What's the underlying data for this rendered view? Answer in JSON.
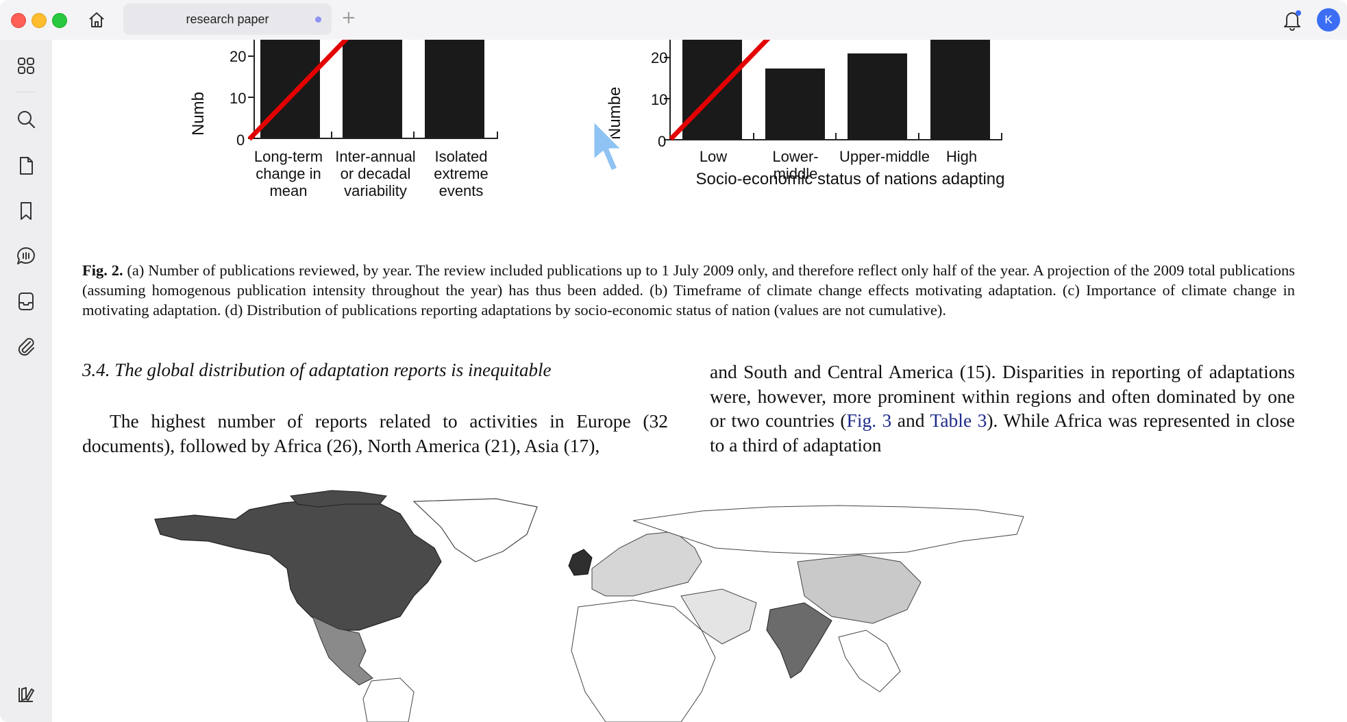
{
  "tab": {
    "title": "research paper"
  },
  "user": {
    "initial": "K"
  },
  "colors": {
    "accent": "#3b6ef5",
    "chart_bar": "#1a1a1a",
    "projection_line": "#e30000",
    "link": "#1d2a8a"
  },
  "sidebar": {
    "icons": [
      "grid-icon",
      "search-icon",
      "document-icon",
      "bookmark-icon",
      "chat-icon",
      "inbox-icon",
      "attachment-icon",
      "library-icon"
    ]
  },
  "chart_data": [
    {
      "type": "bar",
      "ylabel": "Numb",
      "yticks": [
        "0",
        "10",
        "20"
      ],
      "categories": [
        "Long-term change in mean",
        "Inter-annual or decadal variability",
        "Isolated extreme events"
      ],
      "category_lines": [
        [
          "Long-term",
          "change in",
          "mean"
        ],
        [
          "Inter-annual",
          "or decadal",
          "variability"
        ],
        [
          "Isolated",
          "extreme events"
        ]
      ],
      "values": [
        27,
        27,
        27
      ],
      "ylim": [
        0,
        27
      ]
    },
    {
      "type": "bar",
      "ylabel": "Numbe",
      "yticks": [
        "0",
        "10",
        "20"
      ],
      "categories": [
        "Low",
        "Lower-middle",
        "Upper-middle",
        "High"
      ],
      "values": [
        25,
        17.5,
        21,
        27
      ],
      "ylim": [
        0,
        27
      ],
      "xlabel": "Socio-economic status of nations adapting"
    }
  ],
  "caption": {
    "label": "Fig. 2.",
    "text": " (a) Number of publications reviewed, by year. The review included publications up to 1 July 2009 only, and therefore reflect only half of the year. A projection of the 2009 total publications (assuming homogenous publication intensity throughout the year) has thus been added. (b) Timeframe of climate change effects motivating adaptation. (c) Importance of climate change in motivating adaptation. (d) Distribution of publications reporting adaptations by socio-economic status of nation (values are not cumulative)."
  },
  "section": {
    "heading": "3.4.  The global distribution of adaptation reports is inequitable"
  },
  "body_left": "The highest number of reports related to activities in Europe (32 documents), followed by Africa (26), North America (21), Asia (17),",
  "body_right": {
    "part1": "and South and Central America (15). Disparities in reporting of adaptations were, however, more prominent within regions and often dominated by one or two countries (",
    "link1": "Fig.  3",
    "mid": " and ",
    "link2": "Table 3",
    "part2": "). While Africa was represented in close to a third of adaptation"
  }
}
